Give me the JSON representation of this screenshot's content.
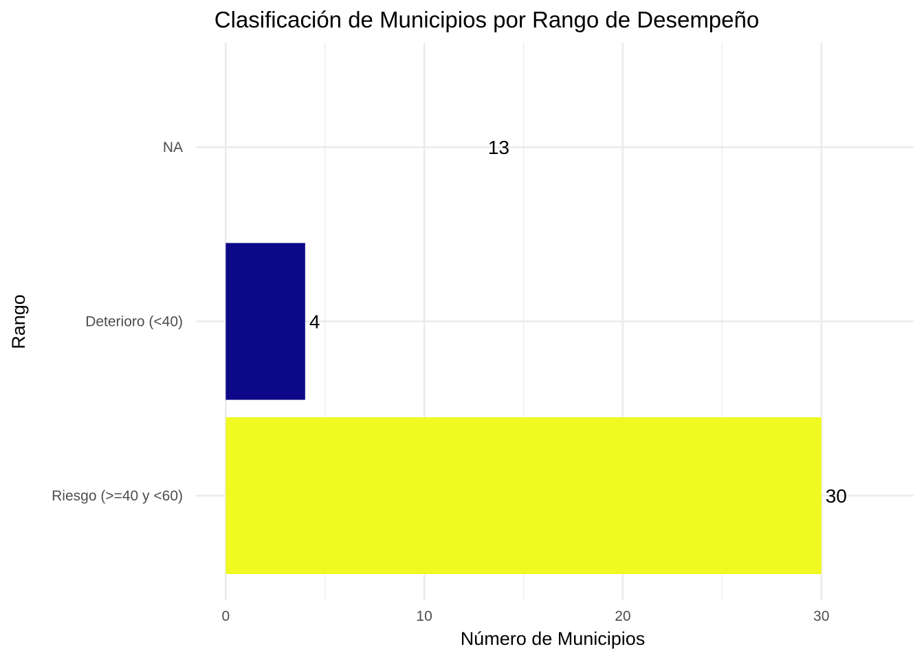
{
  "chart_data": {
    "type": "bar",
    "orientation": "horizontal",
    "title": "Clasificación de Municipios por Rango de Desempeño",
    "xlabel": "Número de Municipios",
    "ylabel": "Rango",
    "xlim": [
      0,
      34.65
    ],
    "x_ticks": [
      0,
      10,
      20,
      30
    ],
    "x_minor_ticks": [
      5,
      15,
      25
    ],
    "grid": true,
    "legend": "none",
    "categories": [
      "NA",
      "Deterioro (<40)",
      "Riesgo (>=40 y <60)"
    ],
    "values": [
      13,
      4,
      30
    ],
    "data_labels": [
      "13",
      "4",
      "30"
    ],
    "colors": [
      "#808080",
      "#0d0887",
      "#f0f921"
    ],
    "bar_visible": [
      false,
      true,
      true
    ]
  }
}
